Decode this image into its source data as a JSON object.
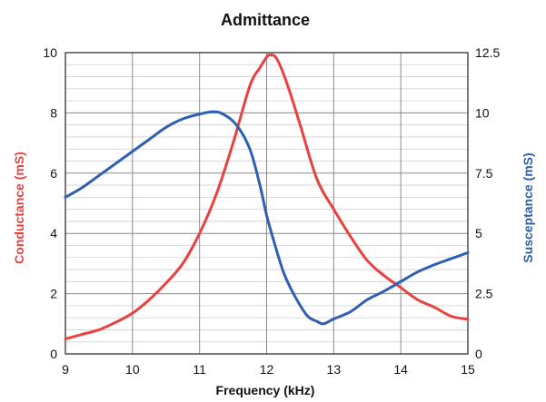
{
  "chart_data": {
    "type": "line",
    "title": "Admittance",
    "xlabel": "Frequency (kHz)",
    "xlim": [
      9,
      15
    ],
    "x_ticks": [
      "9",
      "10",
      "11",
      "12",
      "13",
      "14",
      "15"
    ],
    "y_left": {
      "label": "Conductance (mS)",
      "lim": [
        0,
        10
      ],
      "ticks": [
        "0",
        "2",
        "4",
        "6",
        "8",
        "10"
      ],
      "color": "#e8413f"
    },
    "y_right": {
      "label": "Susceptance (mS)",
      "lim": [
        0,
        12.5
      ],
      "ticks": [
        "0",
        "2.5",
        "5",
        "7.5",
        "10",
        "12.5"
      ],
      "color": "#2f5fb0"
    },
    "grid": true,
    "minor_grid": true,
    "series": [
      {
        "axis": "left",
        "color": "#e8413f",
        "points": [
          [
            9.0,
            0.5
          ],
          [
            9.25,
            0.65
          ],
          [
            9.5,
            0.8
          ],
          [
            9.75,
            1.05
          ],
          [
            10.0,
            1.35
          ],
          [
            10.25,
            1.8
          ],
          [
            10.5,
            2.35
          ],
          [
            10.75,
            3.0
          ],
          [
            11.0,
            4.0
          ],
          [
            11.25,
            5.3
          ],
          [
            11.5,
            7.0
          ],
          [
            11.75,
            8.9
          ],
          [
            11.9,
            9.5
          ],
          [
            12.0,
            9.85
          ],
          [
            12.05,
            9.92
          ],
          [
            12.15,
            9.8
          ],
          [
            12.3,
            9.0
          ],
          [
            12.5,
            7.6
          ],
          [
            12.75,
            5.8
          ],
          [
            13.0,
            4.8
          ],
          [
            13.25,
            3.9
          ],
          [
            13.5,
            3.1
          ],
          [
            13.75,
            2.6
          ],
          [
            14.0,
            2.2
          ],
          [
            14.25,
            1.8
          ],
          [
            14.5,
            1.55
          ],
          [
            14.75,
            1.25
          ],
          [
            15.0,
            1.15
          ]
        ]
      },
      {
        "axis": "right",
        "color": "#2f5fb0",
        "points": [
          [
            9.0,
            6.5
          ],
          [
            9.25,
            6.9
          ],
          [
            9.5,
            7.4
          ],
          [
            9.75,
            7.9
          ],
          [
            10.0,
            8.4
          ],
          [
            10.25,
            8.9
          ],
          [
            10.5,
            9.4
          ],
          [
            10.75,
            9.75
          ],
          [
            11.0,
            9.95
          ],
          [
            11.2,
            10.05
          ],
          [
            11.35,
            9.95
          ],
          [
            11.55,
            9.5
          ],
          [
            11.75,
            8.5
          ],
          [
            11.9,
            7.0
          ],
          [
            12.0,
            5.75
          ],
          [
            12.1,
            4.75
          ],
          [
            12.25,
            3.4
          ],
          [
            12.4,
            2.5
          ],
          [
            12.6,
            1.6
          ],
          [
            12.75,
            1.35
          ],
          [
            12.85,
            1.25
          ],
          [
            13.0,
            1.45
          ],
          [
            13.25,
            1.75
          ],
          [
            13.5,
            2.25
          ],
          [
            13.75,
            2.6
          ],
          [
            14.0,
            3.0
          ],
          [
            14.25,
            3.4
          ],
          [
            14.5,
            3.7
          ],
          [
            14.75,
            3.95
          ],
          [
            15.0,
            4.2
          ]
        ]
      }
    ]
  }
}
